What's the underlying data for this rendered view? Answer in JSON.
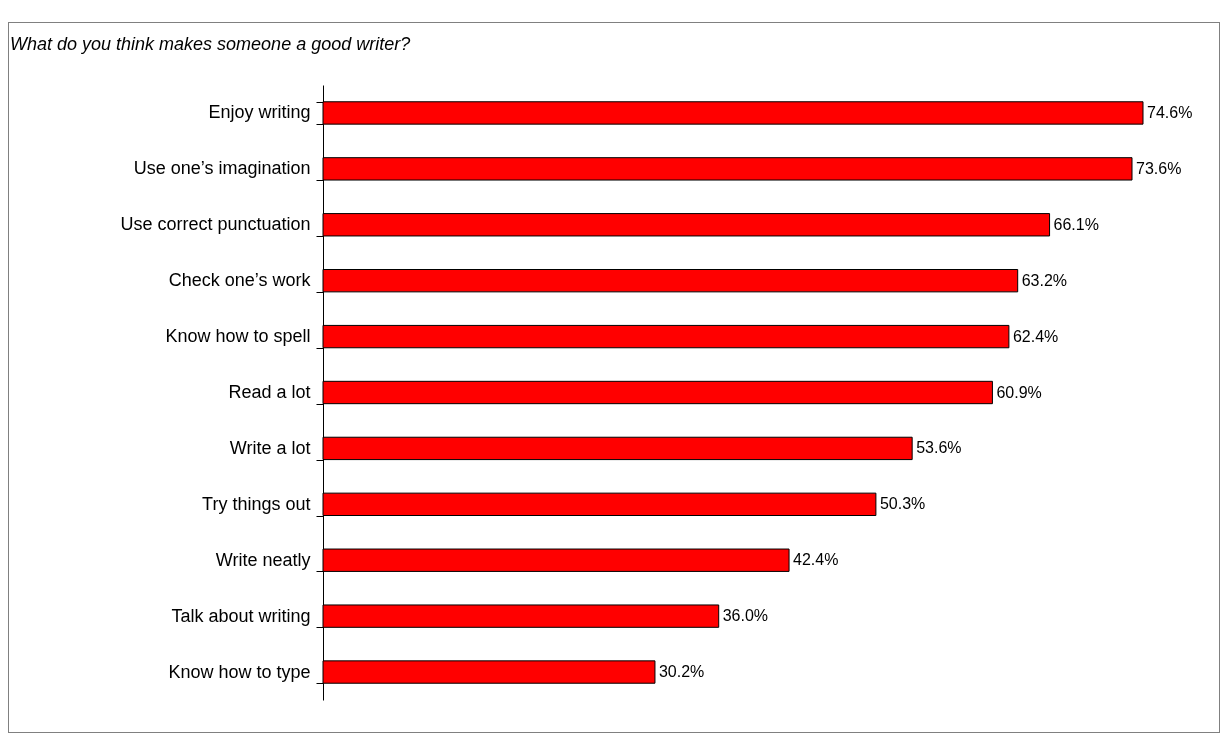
{
  "chart_data": {
    "type": "bar",
    "orientation": "horizontal",
    "title": "What do you think makes someone a good writer?",
    "categories": [
      "Enjoy writing",
      "Use one’s imagination",
      "Use correct punctuation",
      "Check one’s work",
      "Know how to spell",
      "Read a lot",
      "Write a lot",
      "Try things out",
      "Write neatly",
      "Talk about writing",
      "Know how to type"
    ],
    "values": [
      74.6,
      73.6,
      66.1,
      63.2,
      62.4,
      60.9,
      53.6,
      50.3,
      42.4,
      36.0,
      30.2
    ],
    "value_labels": [
      "74.6%",
      "73.6%",
      "66.1%",
      "63.2%",
      "62.4%",
      "60.9%",
      "53.6%",
      "50.3%",
      "42.4%",
      "36.0%",
      "30.2%"
    ],
    "color": "#ff0000"
  }
}
